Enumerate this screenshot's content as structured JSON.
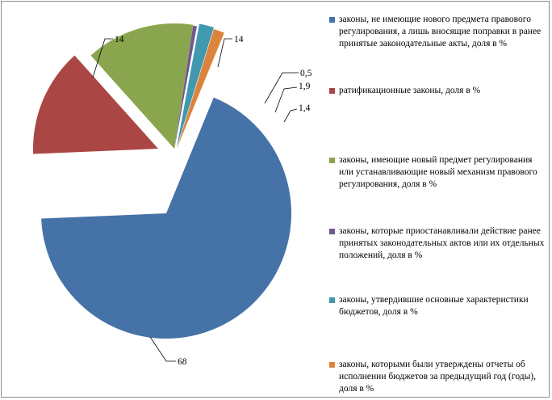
{
  "chart_data": {
    "type": "pie",
    "slices": [
      {
        "label": "законы, не имеющие нового предмета правового регулирования, а лишь вносящие поправки в ранее принятые законодательные акты, доля в %",
        "value": 68,
        "value_label": "68",
        "color": "#4572A7"
      },
      {
        "label": "ратификационные законы, доля в %",
        "value": 14,
        "value_label": "14",
        "color": "#AA4643"
      },
      {
        "label": "законы, имеющие новый предмет регулирования или устанавливающие новый механизм правового регулирования, доля в %",
        "value": 14,
        "value_label": "14",
        "color": "#89A54E"
      },
      {
        "label": "законы, которые приостанавливали действие ранее принятых законодательных актов или их отдельных положений, доля в %",
        "value": 0.5,
        "value_label": "0,5",
        "color": "#71588F"
      },
      {
        "label": "законы, утвердившие основные характеристики бюджетов, доля в %",
        "value": 1.9,
        "value_label": "1,9",
        "color": "#4198AF"
      },
      {
        "label": "законы, которыми были утверждены отчеты об исполнении бюджетов за предыдущий год (годы), доля в %",
        "value": 1.4,
        "value_label": "1,4",
        "color": "#DB843D"
      }
    ],
    "legend_position": "right"
  }
}
